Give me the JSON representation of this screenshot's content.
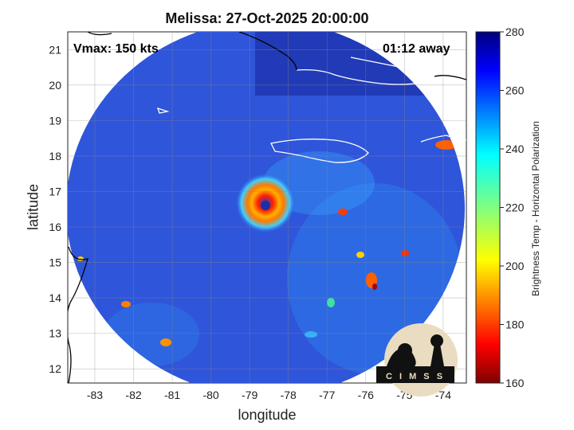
{
  "header": {
    "title": "Melissa: 27-Oct-2025 20:00:00"
  },
  "overlay": {
    "vmax": "Vmax: 150 kts",
    "time_away": "01:12 away"
  },
  "axes": {
    "xlabel": "longitude",
    "ylabel": "latitude",
    "xlim": [
      -83.7,
      -73.4
    ],
    "ylim": [
      11.6,
      21.5
    ],
    "xticks": [
      -83,
      -82,
      -81,
      -80,
      -79,
      -78,
      -77,
      -76,
      -75,
      -74
    ],
    "yticks": [
      12,
      13,
      14,
      15,
      16,
      17,
      18,
      19,
      20,
      21
    ],
    "grid": true
  },
  "colorbar": {
    "label": "Brightness Temp - Horizontal Polarization",
    "min": 160,
    "max": 280,
    "ticks": [
      160,
      180,
      200,
      220,
      240,
      260,
      280
    ],
    "colormap": "jet"
  },
  "storm": {
    "center_lon": -78.6,
    "center_lat": 16.6
  },
  "logo": {
    "text": "CIMSS"
  },
  "colors": {
    "background": "#2a4fd8",
    "coast": "#ffffff",
    "coast_outside": "#000000"
  }
}
